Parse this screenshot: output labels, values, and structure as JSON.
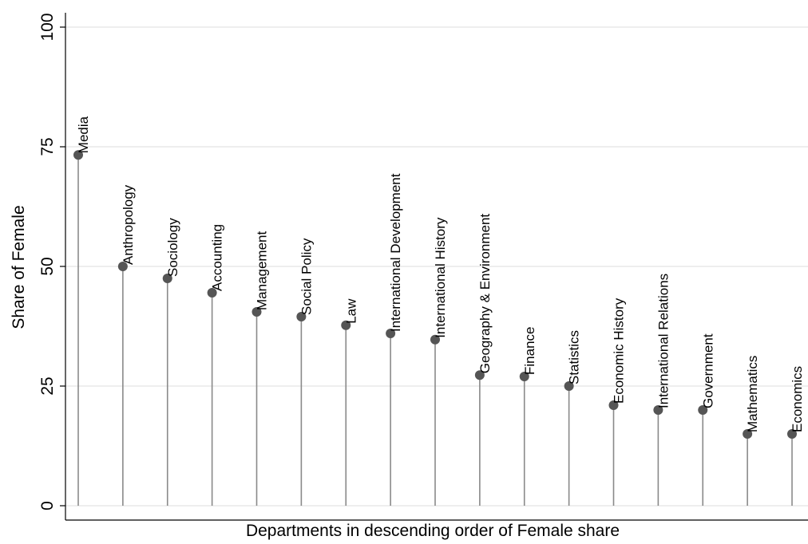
{
  "chart_data": {
    "type": "lollipop",
    "x_label": "Departments in descending order of Female share",
    "y_label": "Share of Female",
    "categories": [
      "Media",
      "Anthropology",
      "Sociology",
      "Accounting",
      "Management",
      "Social Policy",
      "Law",
      "International Development",
      "International History",
      "Geography & Environment",
      "Finance",
      "Statistics",
      "Economic History",
      "International Relations",
      "Government",
      "Mathematics",
      "Economics"
    ],
    "values": [
      73.3,
      50,
      47.5,
      44.5,
      40.5,
      39.5,
      37.7,
      36,
      34.7,
      27.3,
      27,
      25,
      21,
      20,
      20,
      15,
      15
    ],
    "color": "#555555",
    "ylim": [
      -3,
      103
    ],
    "yticks": [
      0,
      25,
      50,
      75,
      100
    ],
    "grid": true
  }
}
